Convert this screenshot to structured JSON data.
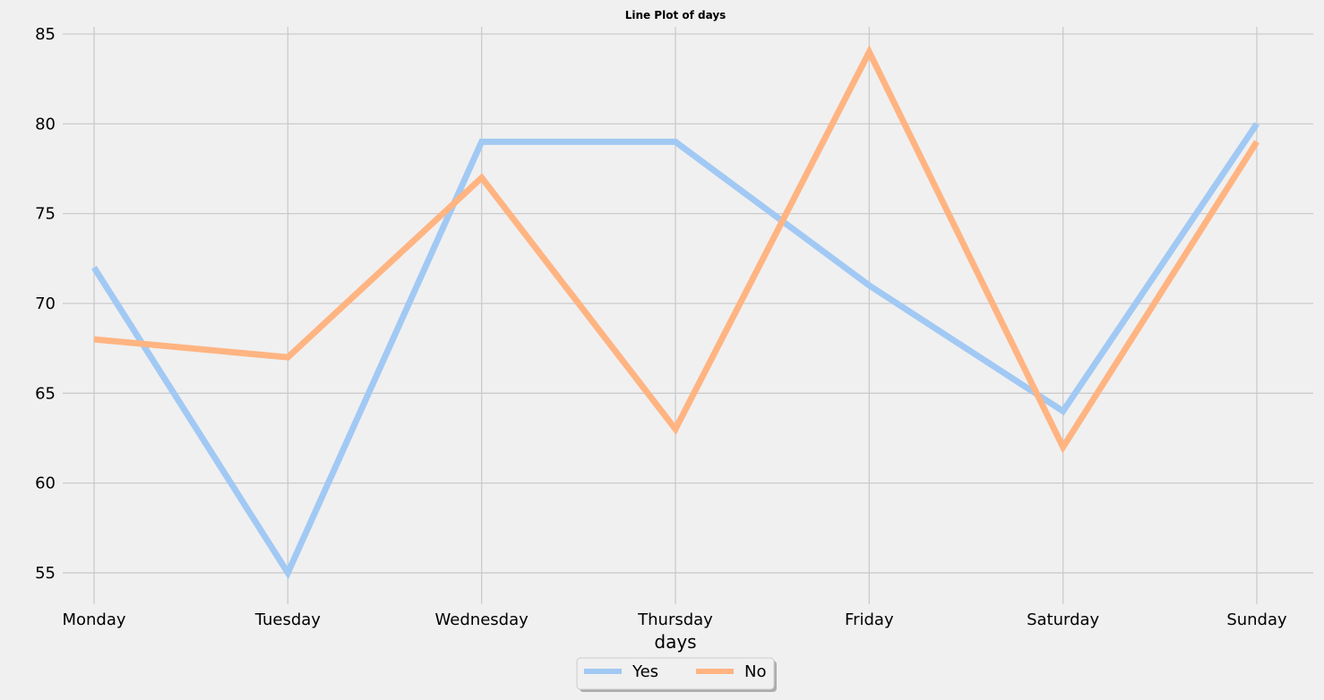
{
  "chart_data": {
    "type": "line",
    "title": "Line Plot of days",
    "xlabel": "days",
    "ylabel": "",
    "categories": [
      "Monday",
      "Tuesday",
      "Wednesday",
      "Thursday",
      "Friday",
      "Saturday",
      "Sunday"
    ],
    "series": [
      {
        "name": "Yes",
        "color": "#a1c9f4",
        "values": [
          72,
          55,
          79,
          79,
          71,
          64,
          80
        ]
      },
      {
        "name": "No",
        "color": "#ffb482",
        "values": [
          68,
          67,
          77,
          63,
          84,
          62,
          79
        ]
      }
    ],
    "ylim": [
      54,
      85.4
    ],
    "yticks": [
      55,
      60,
      65,
      70,
      75,
      80,
      85
    ],
    "grid": true,
    "legend_position": "bottom-center"
  }
}
